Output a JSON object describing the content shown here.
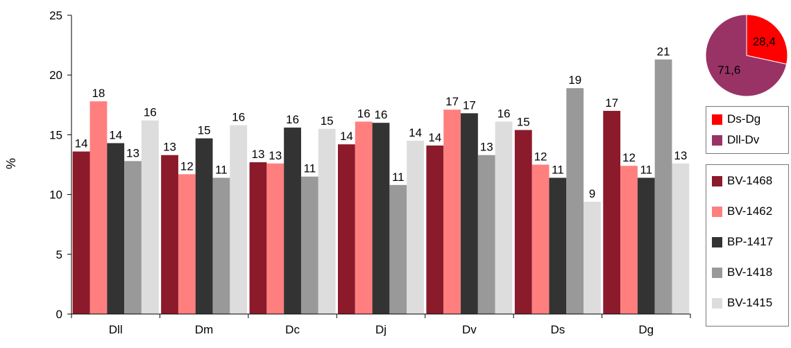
{
  "chart_data": [
    {
      "type": "bar",
      "title": "",
      "xlabel": "",
      "ylabel": "%",
      "ylim": [
        0,
        25
      ],
      "yticks": [
        "0",
        "5",
        "10",
        "15",
        "20",
        "25"
      ],
      "grid": false,
      "legend_placement": "right",
      "categories": [
        "Dll",
        "Dm",
        "Dc",
        "Dj",
        "Dv",
        "Ds",
        "Dg"
      ],
      "series": [
        {
          "name": "BV-1468",
          "color": "#8B1A2B",
          "values": [
            13.6,
            13.3,
            12.7,
            14.2,
            14.1,
            15.4,
            17.0
          ],
          "labels": [
            "14",
            "13",
            "13",
            "14",
            "14",
            "15",
            "17"
          ]
        },
        {
          "name": "BV-1462",
          "color": "#FF7F7F",
          "values": [
            17.8,
            11.7,
            12.6,
            16.1,
            17.1,
            12.5,
            12.4
          ],
          "labels": [
            "18",
            "12",
            "13",
            "16",
            "17",
            "12",
            "12"
          ]
        },
        {
          "name": "BP-1417",
          "color": "#333333",
          "values": [
            14.3,
            14.7,
            15.6,
            16.0,
            16.8,
            11.4,
            11.4
          ],
          "labels": [
            "14",
            "15",
            "16",
            "16",
            "17",
            "11",
            "11"
          ]
        },
        {
          "name": "BV-1418",
          "color": "#999999",
          "values": [
            12.8,
            11.4,
            11.5,
            10.8,
            13.3,
            18.9,
            21.3
          ],
          "labels": [
            "13",
            "11",
            "11",
            "11",
            "13",
            "19",
            "21"
          ]
        },
        {
          "name": "BV-1415",
          "color": "#DDDDDD",
          "values": [
            16.2,
            15.8,
            15.5,
            14.5,
            16.1,
            9.4,
            12.6
          ],
          "labels": [
            "16",
            "16",
            "15",
            "14",
            "16",
            "9",
            "13"
          ]
        }
      ]
    },
    {
      "type": "pie",
      "slices": [
        {
          "name": "Ds-Dg",
          "value": 28.4,
          "label": "28,4",
          "color": "#FF0000"
        },
        {
          "name": "Dll-Dv",
          "value": 71.6,
          "label": "71,6",
          "color": "#993366"
        }
      ]
    }
  ]
}
